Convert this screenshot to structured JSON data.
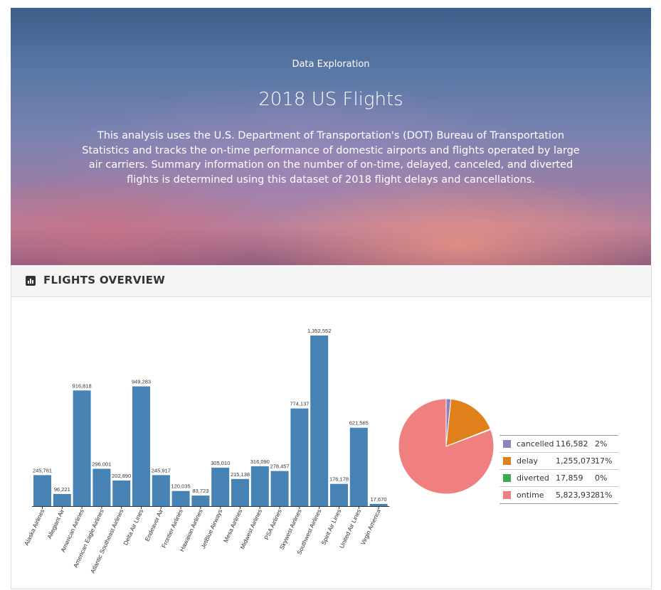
{
  "hero": {
    "subtitle": "Data Exploration",
    "title": "2018 US Flights",
    "description": "This analysis uses the U.S. Department of Transportation's (DOT) Bureau of Transportation Statistics and tracks the on-time performance of domestic airports and flights operated by large air carriers. Summary information on the number of on-time, delayed, canceled, and diverted flights is determined using this dataset of 2018 flight delays and cancellations."
  },
  "panel": {
    "title": "FLIGHTS OVERVIEW",
    "icon": "bar-chart-icon"
  },
  "colors": {
    "bar": "#4682b4",
    "cancelled": "#8c82c0",
    "delay": "#e0801a",
    "diverted": "#3caa50",
    "ontime": "#f08080"
  },
  "chart_data": [
    {
      "type": "bar",
      "categories": [
        "Alaska Airlines",
        "Allegiant Air",
        "American Airlines",
        "American Eagle Airlines",
        "Atlantic Southeast Airlines",
        "Delta Air Lines",
        "Endeavor Air",
        "Frontier Airlines",
        "Hawaiian Airlines",
        "JetBlue Airways",
        "Mesa Airlines",
        "Midwest Airlines",
        "PSA Airlines",
        "Skywest Airlines",
        "Southwest Airlines",
        "Spirit Air Lines",
        "United Air Lines",
        "Virgin America"
      ],
      "values": [
        245761,
        96221,
        916818,
        296001,
        202890,
        949283,
        245917,
        120035,
        83723,
        305010,
        215138,
        316090,
        278457,
        774137,
        1352552,
        176178,
        621565,
        17670
      ],
      "labels": [
        "245,761",
        "96,221",
        "916,818",
        "296,001",
        "202,890",
        "949,283",
        "245,917",
        "120,035",
        "83,723",
        "305,010",
        "215,138",
        "316,090",
        "278,457",
        "774,137",
        "1,352,552",
        "176,178",
        "621,565",
        "17,670"
      ],
      "ylim": [
        0,
        1352552
      ]
    },
    {
      "type": "pie",
      "categories": [
        "cancelled",
        "delay",
        "diverted",
        "ontime"
      ],
      "values": [
        116582,
        1255073,
        17859,
        5823932
      ],
      "count_labels": [
        "116,582",
        "1,255,073",
        "17,859",
        "5,823,932"
      ],
      "percent_labels": [
        "2%",
        "17%",
        "0%",
        "81%"
      ]
    }
  ]
}
